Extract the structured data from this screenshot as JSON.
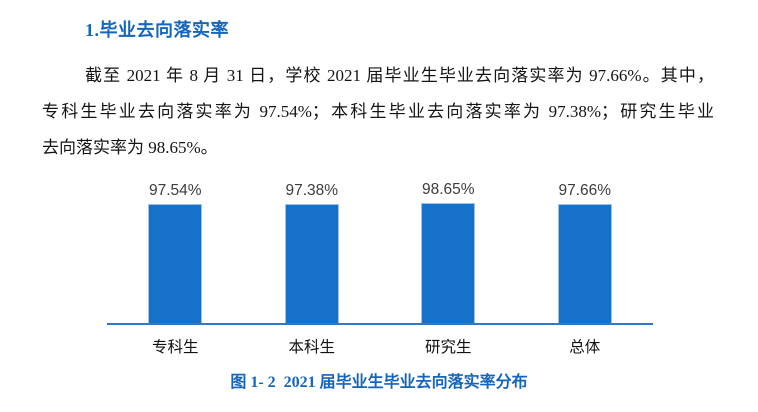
{
  "page": {
    "heading": "1.毕业去向落实率",
    "paragraph_lines": [
      "截至 2021 年 8 月 31 日，学校 2021 届毕业生毕业去向落实率为 97.66%。其中，",
      "专科生毕业去向落实率为 97.54%；本科生毕业去向落实率为 97.38%；研究生毕业",
      "去向落实率为 98.65%。"
    ],
    "caption": "图 1- 2  2021 届毕业生毕业去向落实率分布",
    "colors": {
      "heading_blue": "#1465bd",
      "caption_blue": "#1465bd",
      "body_text": "#141414"
    }
  },
  "chart_data": {
    "type": "bar",
    "categories": [
      "专科生",
      "本科生",
      "研究生",
      "总体"
    ],
    "values": [
      97.54,
      97.38,
      98.65,
      97.66
    ],
    "value_labels": [
      "97.54%",
      "97.38%",
      "98.65%",
      "97.66%"
    ],
    "title": "",
    "xlabel": "",
    "ylabel": "",
    "ylim": [
      0,
      100
    ],
    "grid": false,
    "legend": false,
    "bar_color": "#1571c9",
    "bar_border_color": "#9dc3e6",
    "axis_color": "#2e79c9",
    "value_label_color": "#3d3d3d"
  }
}
